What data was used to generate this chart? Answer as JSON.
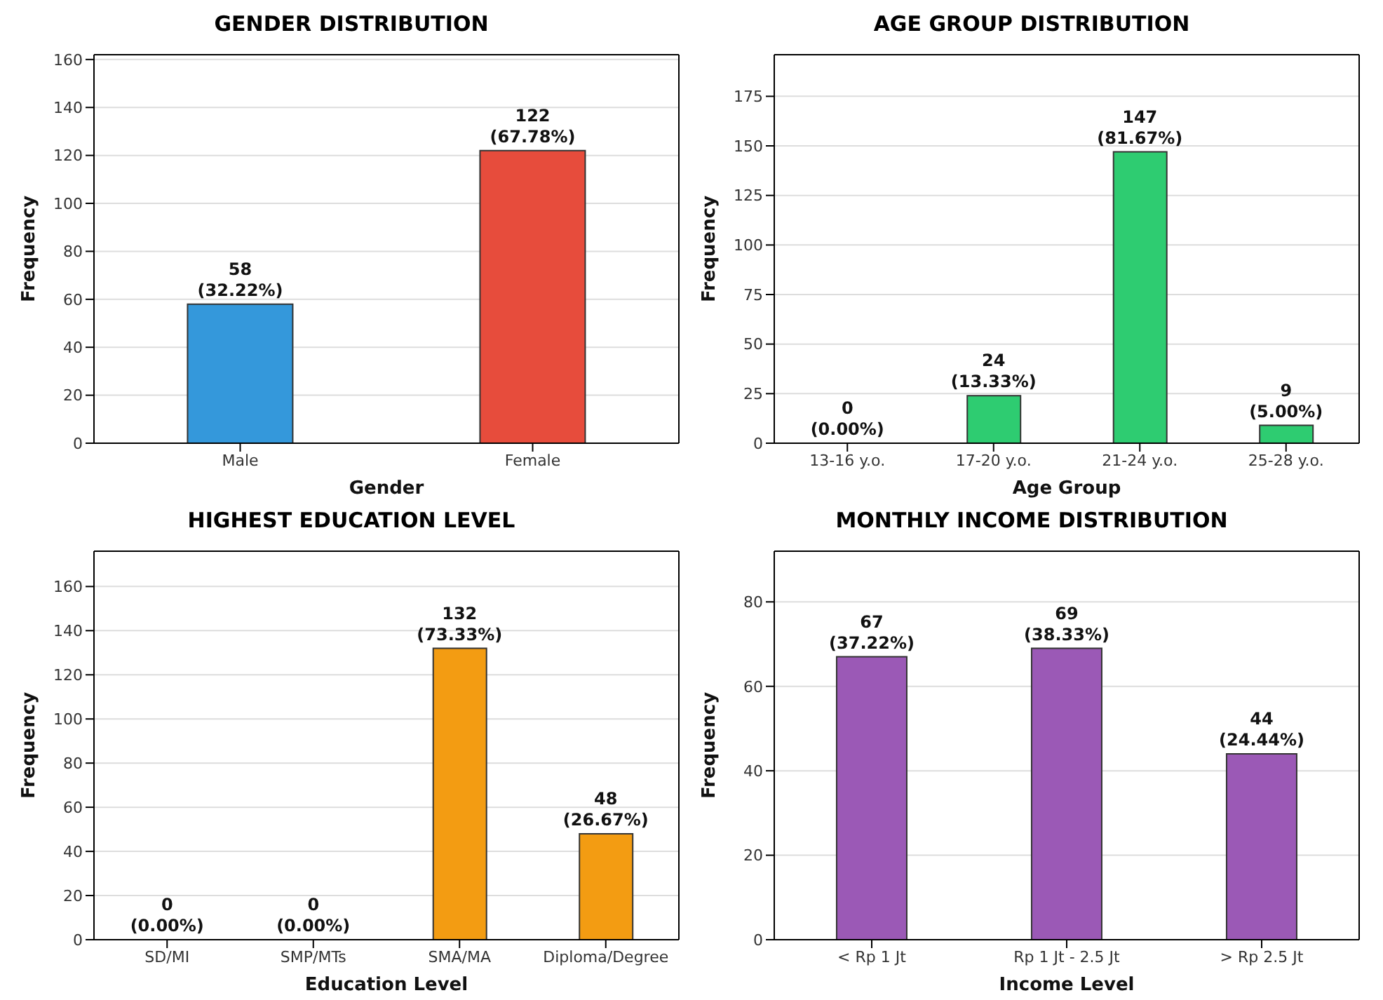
{
  "chart_data": [
    {
      "type": "bar",
      "title": "GENDER DISTRIBUTION",
      "xlabel": "Gender",
      "ylabel": "Frequency",
      "categories": [
        "Male",
        "Female"
      ],
      "values": [
        58,
        122
      ],
      "colors": [
        "#3498db",
        "#e74c3c"
      ],
      "value_labels": [
        "58\n(32.22%)",
        "122\n(67.78%)"
      ],
      "ylim": [
        0,
        162
      ],
      "yticks": [
        0,
        20,
        40,
        60,
        80,
        100,
        120,
        140,
        160
      ],
      "grid": "y"
    },
    {
      "type": "bar",
      "title": "AGE GROUP DISTRIBUTION",
      "xlabel": "Age Group",
      "ylabel": "Frequency",
      "categories": [
        "13-16 y.o.",
        "17-20 y.o.",
        "21-24 y.o.",
        "25-28 y.o."
      ],
      "values": [
        0,
        24,
        147,
        9
      ],
      "color": "#2ecc71",
      "value_labels": [
        "0\n(0.00%)",
        "24\n(13.33%)",
        "147\n(81.67%)",
        "9\n(5.00%)"
      ],
      "ylim": [
        0,
        196
      ],
      "yticks": [
        0,
        25,
        50,
        75,
        100,
        125,
        150,
        175
      ],
      "grid": "y"
    },
    {
      "type": "bar",
      "title": "HIGHEST EDUCATION LEVEL",
      "xlabel": "Education Level",
      "ylabel": "Frequency",
      "categories": [
        "SD/MI",
        "SMP/MTs",
        "SMA/MA",
        "Diploma/Degree"
      ],
      "values": [
        0,
        0,
        132,
        48
      ],
      "color": "#f39c12",
      "value_labels": [
        "0\n(0.00%)",
        "0\n(0.00%)",
        "132\n(73.33%)",
        "48\n(26.67%)"
      ],
      "ylim": [
        0,
        176
      ],
      "yticks": [
        0,
        20,
        40,
        60,
        80,
        100,
        120,
        140,
        160
      ],
      "grid": "y"
    },
    {
      "type": "bar",
      "title": "MONTHLY INCOME DISTRIBUTION",
      "xlabel": "Income Level",
      "ylabel": "Frequency",
      "categories": [
        "< Rp 1 Jt",
        "Rp 1 Jt - 2.5 Jt",
        "> Rp 2.5 Jt"
      ],
      "values": [
        67,
        69,
        44
      ],
      "color": "#9b59b6",
      "value_labels": [
        "67\n(37.22%)",
        "69\n(38.33%)",
        "44\n(24.44%)"
      ],
      "ylim": [
        0,
        92
      ],
      "yticks": [
        0,
        20,
        40,
        60,
        80
      ],
      "grid": "y"
    }
  ]
}
